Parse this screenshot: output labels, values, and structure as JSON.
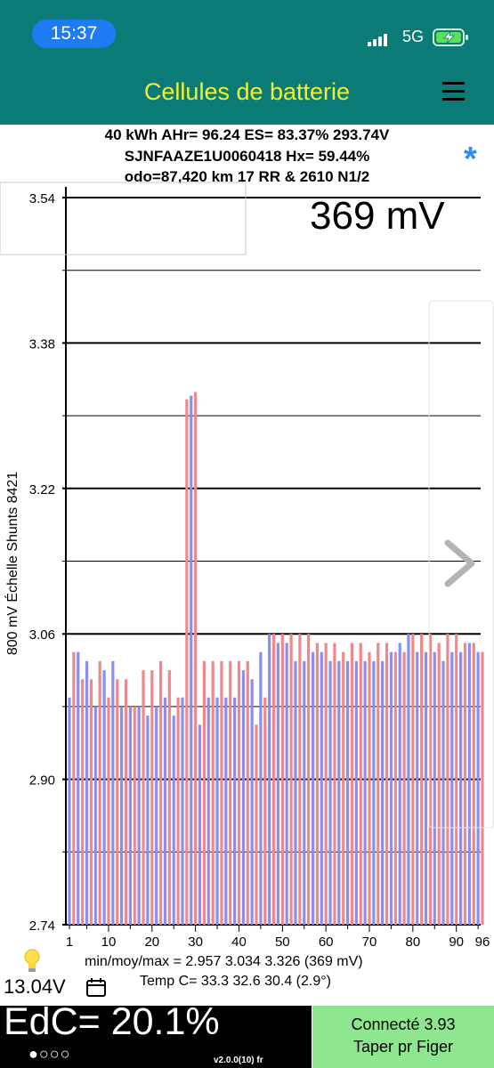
{
  "status_bar": {
    "time": "15:37",
    "network": "5G"
  },
  "header": {
    "title": "Cellules de batterie"
  },
  "info": {
    "line1": "40 kWh  AHr= 96.24 ES= 83.37% 293.74V",
    "line2": "SJNFAAZE1U0060418   Hx= 59.44%",
    "line3": "odo=87,420 km 17 RR & 2610 N1/2"
  },
  "readout": {
    "delta": "369 mV"
  },
  "chart_data": {
    "type": "bar",
    "ylabel": "800 mV Échelle   Shunts 8421",
    "ylim": [
      2.74,
      3.54
    ],
    "yticks": [
      "3.54",
      "3.38",
      "3.22",
      "3.06",
      "2.90",
      "2.74"
    ],
    "xticks": [
      "1",
      "10",
      "20",
      "30",
      "40",
      "50",
      "60",
      "70",
      "80",
      "90",
      "96"
    ],
    "colors": {
      "odd": "#8b8ef0",
      "even": "#f0888b"
    },
    "x": [
      1,
      2,
      3,
      4,
      5,
      6,
      7,
      8,
      9,
      10,
      11,
      12,
      13,
      14,
      15,
      16,
      17,
      18,
      19,
      20,
      21,
      22,
      23,
      24,
      25,
      26,
      27,
      28,
      29,
      30,
      31,
      32,
      33,
      34,
      35,
      36,
      37,
      38,
      39,
      40,
      41,
      42,
      43,
      44,
      45,
      46,
      47,
      48,
      49,
      50,
      51,
      52,
      53,
      54,
      55,
      56,
      57,
      58,
      59,
      60,
      61,
      62,
      63,
      64,
      65,
      66,
      67,
      68,
      69,
      70,
      71,
      72,
      73,
      74,
      75,
      76,
      77,
      78,
      79,
      80,
      81,
      82,
      83,
      84,
      85,
      86,
      87,
      88,
      89,
      90,
      91,
      92,
      93,
      94,
      95,
      96
    ],
    "values": [
      2.99,
      3.04,
      3.04,
      3.01,
      3.03,
      3.01,
      2.98,
      3.03,
      3.02,
      2.99,
      3.03,
      3.01,
      2.98,
      3.01,
      2.98,
      2.98,
      2.98,
      3.02,
      2.97,
      3.02,
      2.98,
      3.03,
      2.99,
      3.02,
      2.97,
      2.99,
      2.99,
      3.318,
      3.322,
      3.326,
      2.96,
      3.03,
      2.99,
      3.03,
      2.99,
      3.03,
      2.99,
      3.03,
      2.99,
      3.03,
      3.02,
      3.03,
      3.01,
      2.96,
      3.04,
      2.99,
      3.06,
      3.06,
      3.05,
      3.06,
      3.05,
      3.06,
      3.03,
      3.06,
      3.03,
      3.06,
      3.04,
      3.05,
      3.04,
      3.05,
      3.03,
      3.05,
      3.03,
      3.04,
      3.03,
      3.05,
      3.03,
      3.05,
      3.03,
      3.04,
      3.03,
      3.05,
      3.03,
      3.05,
      3.04,
      3.04,
      3.05,
      3.04,
      3.06,
      3.06,
      3.04,
      3.06,
      3.04,
      3.06,
      3.04,
      3.05,
      3.03,
      3.06,
      3.04,
      3.06,
      3.04,
      3.05,
      3.05,
      3.05,
      3.04,
      3.04
    ]
  },
  "stats": {
    "line": "min/moy/max = 2.957 3.034 3.326  (369 mV)"
  },
  "temp": {
    "line": "Temp C= 33.3  32.6  30.4  (2.9°)"
  },
  "voltage": "13.04V",
  "soc": {
    "text": "EdC= 20.1%",
    "dots": "●○○○"
  },
  "version": "v2.0.0(10) fr",
  "connection": {
    "line1": "Connecté 3.93",
    "line2": "Taper pr Figer"
  }
}
